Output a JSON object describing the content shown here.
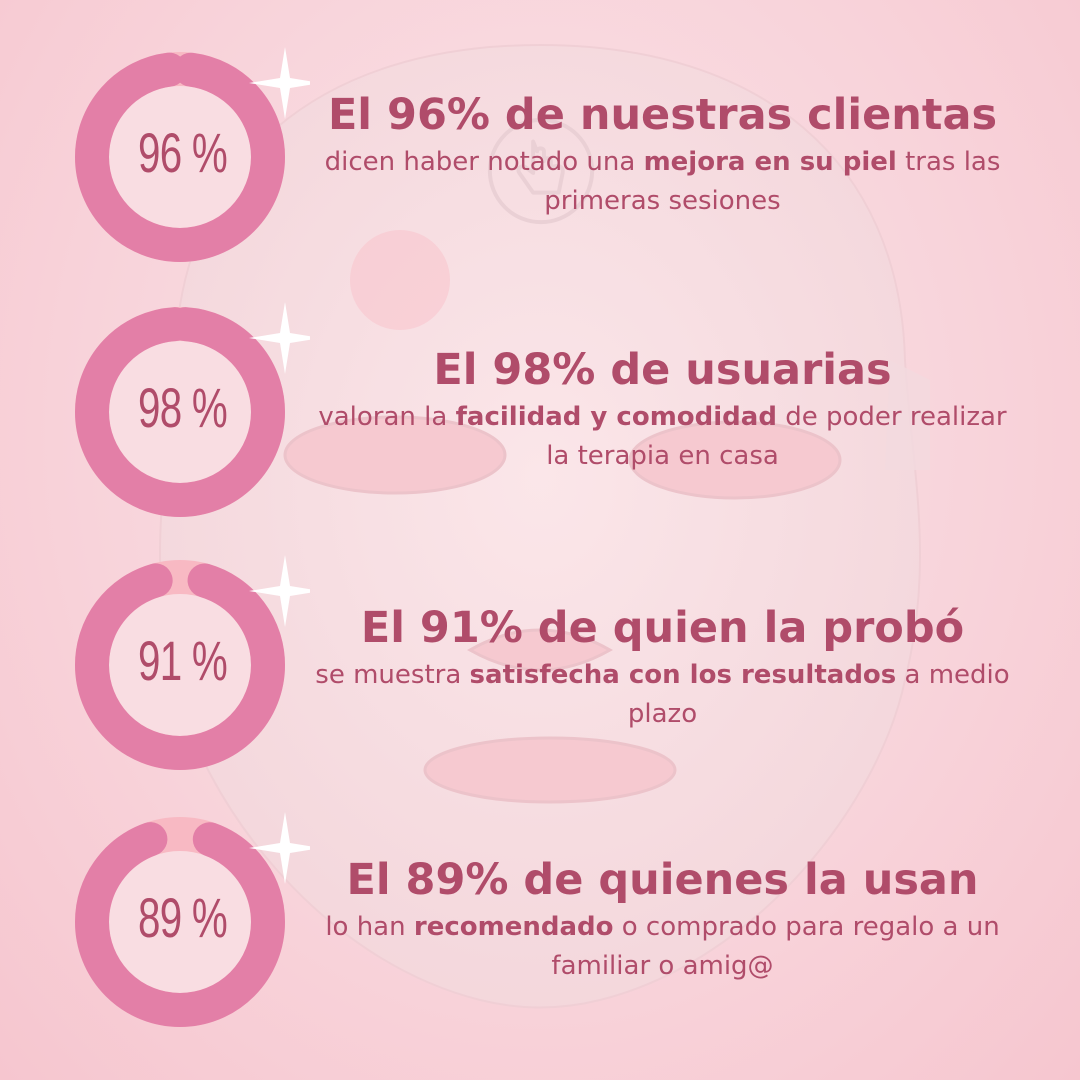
{
  "colors": {
    "background": "#f8d3da",
    "ring": "#e37fa7",
    "ring_light": "#f8b9c3",
    "ring_inner": "#f9dde2",
    "text": "#b04c6a",
    "sparkle": "#ffffff"
  },
  "icons": {
    "background": "led-face-mask-image",
    "center": "hand-pointer-icon",
    "accent": "sparkle-icon"
  },
  "stats": [
    {
      "percent_value": 96,
      "ring_label": "96 %",
      "headline": "El 96% de nuestras clientas",
      "desc_before": "dicen haber notado una ",
      "desc_bold": "mejora en su piel",
      "desc_after": " tras las primeras sesiones"
    },
    {
      "percent_value": 98,
      "ring_label": "98 %",
      "headline": "El 98% de usuarias",
      "desc_before": "valoran la ",
      "desc_bold": "facilidad y comodidad",
      "desc_after": " de poder realizar la terapia en casa"
    },
    {
      "percent_value": 91,
      "ring_label": "91 %",
      "headline": "El 91% de quien la probó",
      "desc_before": "se muestra ",
      "desc_bold": "satisfecha con los resultados",
      "desc_after": " a medio plazo"
    },
    {
      "percent_value": 89,
      "ring_label": "89 %",
      "headline": "El 89% de quienes la usan",
      "desc_before": "lo han ",
      "desc_bold": "recomendado",
      "desc_after": " o comprado para regalo a un familiar o amig@"
    }
  ]
}
